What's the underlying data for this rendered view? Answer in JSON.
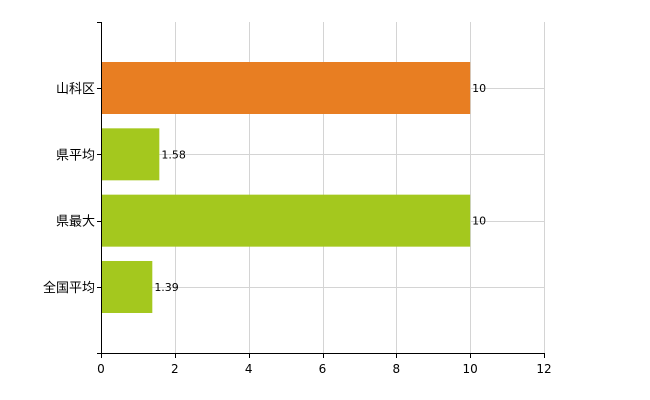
{
  "colors": {
    "highlight": "#e87e22",
    "default": "#a4c81e",
    "grid": "#d4d4d4",
    "axis": "#000000"
  },
  "chart_data": {
    "type": "bar",
    "orientation": "horizontal",
    "title": "",
    "xlabel": "",
    "ylabel": "",
    "categories": [
      "山科区",
      "県平均",
      "県最大",
      "全国平均"
    ],
    "values": [
      10,
      1.58,
      10,
      1.39
    ],
    "value_labels": [
      "10",
      "1.58",
      "10",
      "1.39"
    ],
    "bar_colors": [
      "#e87e22",
      "#a4c81e",
      "#a4c81e",
      "#a4c81e"
    ],
    "xlim": [
      0,
      12
    ],
    "x_ticks": [
      0,
      2,
      4,
      6,
      8,
      10,
      12
    ],
    "x_tick_labels": [
      "0",
      "2",
      "4",
      "6",
      "8",
      "10",
      "12"
    ],
    "grid": true,
    "legend": "none"
  }
}
